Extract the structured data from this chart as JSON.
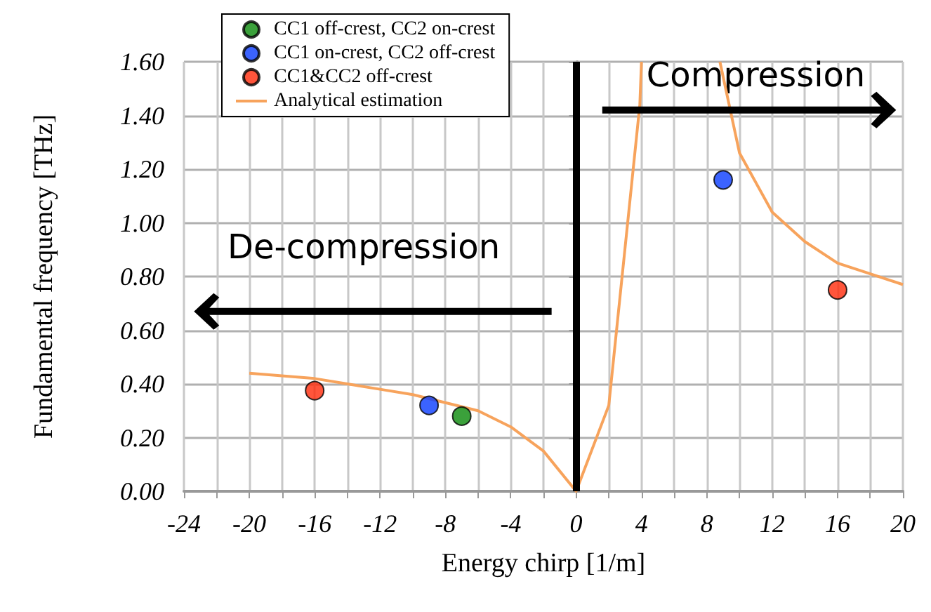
{
  "chart_data": {
    "type": "scatter",
    "xlabel": "Energy chirp [1/m]",
    "ylabel": "Fundamental frequency [THz]",
    "xlim": [
      -24,
      20
    ],
    "xticks": [
      -24,
      {
        "value": -22,
        "label": null
      },
      -20,
      {
        "value": -18,
        "label": null
      },
      -16,
      {
        "value": -14,
        "label": null
      },
      -12,
      {
        "value": -10,
        "label": null
      },
      -8,
      {
        "value": -6,
        "label": null
      },
      -4,
      {
        "value": -2,
        "label": null
      },
      0,
      {
        "value": 2,
        "label": null
      },
      4,
      {
        "value": 6,
        "label": null
      },
      8,
      {
        "value": 10,
        "label": null
      },
      12,
      {
        "value": 14,
        "label": null
      },
      16,
      {
        "value": 18,
        "label": null
      },
      20
    ],
    "ylim": [
      0,
      1.6
    ],
    "yticks": [
      {
        "value": 0,
        "label": "0.00"
      },
      {
        "value": 0.2,
        "label": "0.20"
      },
      {
        "value": 0.4,
        "label": "0.40"
      },
      {
        "value": 0.6,
        "label": "0.60"
      },
      {
        "value": 0.8,
        "label": "0.80"
      },
      {
        "value": 1.0,
        "label": "1.00"
      },
      {
        "value": 1.2,
        "label": "1.20"
      },
      {
        "value": 1.4,
        "label": "1.40"
      },
      {
        "value": 1.6,
        "label": "1.60"
      }
    ],
    "grid": true,
    "legend": "top left",
    "marker": "circle",
    "series": [
      {
        "name": "CC1 off-crest, CC2 on-crest",
        "color": "#0a8a0a",
        "x": [
          -7
        ],
        "values": [
          0.28
        ]
      },
      {
        "name": "CC1 on-crest, CC2 off-crest",
        "color": "#0a3cff",
        "x": [
          -9,
          9
        ],
        "values": [
          0.32,
          1.16
        ]
      },
      {
        "name": "CC1&CC2 off-crest",
        "color": "#ff2a0a",
        "x": [
          -16,
          16
        ],
        "values": [
          0.375,
          0.75
        ]
      },
      {
        "name": "Analytical estimation",
        "type": "line",
        "marker": "none",
        "color": "#f7a35c",
        "x": [
          -20,
          -18,
          -16,
          -14,
          -12,
          -10,
          -8,
          -6,
          -4,
          -2,
          0,
          2,
          3.9,
          4,
          6,
          8.8,
          10,
          12,
          14,
          16,
          18,
          20
        ],
        "values": [
          0.44,
          0.43,
          0.42,
          0.4,
          0.38,
          0.36,
          0.33,
          0.3,
          0.24,
          0.15,
          0.0,
          0.32,
          1.44,
          1.6,
          null,
          1.6,
          1.26,
          1.04,
          0.93,
          0.85,
          0.81,
          0.77
        ]
      }
    ],
    "ref_lines": [
      {
        "axis": "x",
        "value": 0,
        "color": "#000000"
      }
    ],
    "annotations": [
      "De-compression",
      "Compression"
    ]
  }
}
